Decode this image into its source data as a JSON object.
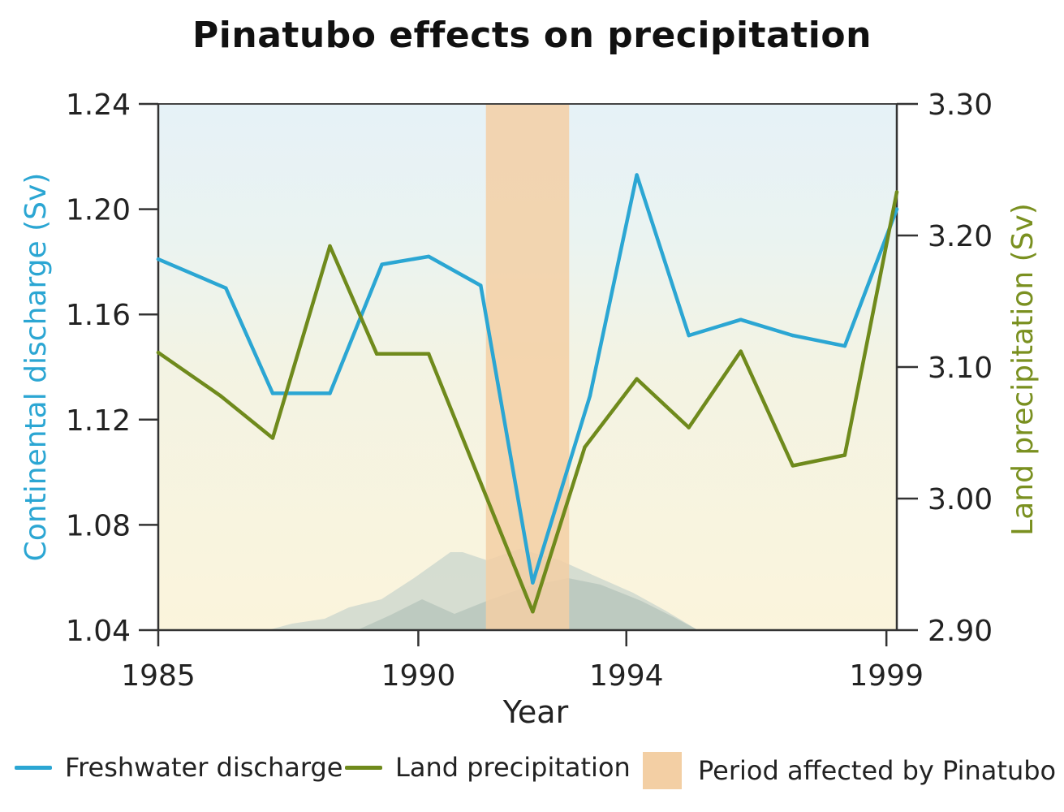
{
  "chart_data": {
    "type": "line",
    "title": "Pinatubo effects on precipitation",
    "xlabel": "Year",
    "ylabel_left": "Continental discharge (Sv)",
    "ylabel_right": "Land precipitation (Sv)",
    "x_ticks": [
      "1985",
      "1990",
      "1994",
      "1999"
    ],
    "xlim": [
      1985,
      1999.2
    ],
    "ylim_left": [
      1.04,
      1.24
    ],
    "ylim_right": [
      2.9,
      3.3
    ],
    "yticks_left": [
      "1.04",
      "1.08",
      "1.12",
      "1.16",
      "1.20",
      "1.24"
    ],
    "yticks_right": [
      "2.90",
      "3.00",
      "3.10",
      "3.20",
      "3.30"
    ],
    "shaded_period": {
      "label": "Period affected by Pinatubo",
      "start": 1991.3,
      "end": 1992.9,
      "color": "#f3cfa4"
    },
    "series": [
      {
        "name": "Freshwater discharge",
        "axis": "left",
        "color": "#2ba6d3",
        "x": [
          1985,
          1986.3,
          1987.2,
          1988.3,
          1989.3,
          1990.2,
          1991.2,
          1992.2,
          1993.3,
          1994.2,
          1995.2,
          1996.2,
          1997.2,
          1998.2,
          1999.2
        ],
        "values": [
          1.181,
          1.17,
          1.13,
          1.13,
          1.179,
          1.182,
          1.171,
          1.058,
          1.129,
          1.213,
          1.152,
          1.158,
          1.152,
          1.148,
          1.2
        ]
      },
      {
        "name": "Land precipitation",
        "axis": "right",
        "color": "#6f8a1c",
        "x": [
          1985,
          1986.2,
          1987.2,
          1988.3,
          1989.2,
          1990.2,
          1991.2,
          1992.2,
          1993.2,
          1994.2,
          1995.2,
          1996.2,
          1997.2,
          1998.2,
          1999.2
        ],
        "values": [
          3.111,
          3.078,
          3.046,
          3.192,
          3.11,
          3.11,
          3.012,
          2.914,
          3.039,
          3.091,
          3.054,
          3.112,
          3.025,
          3.033,
          3.233
        ]
      }
    ],
    "legend_placement": "bottom",
    "grid": false
  }
}
